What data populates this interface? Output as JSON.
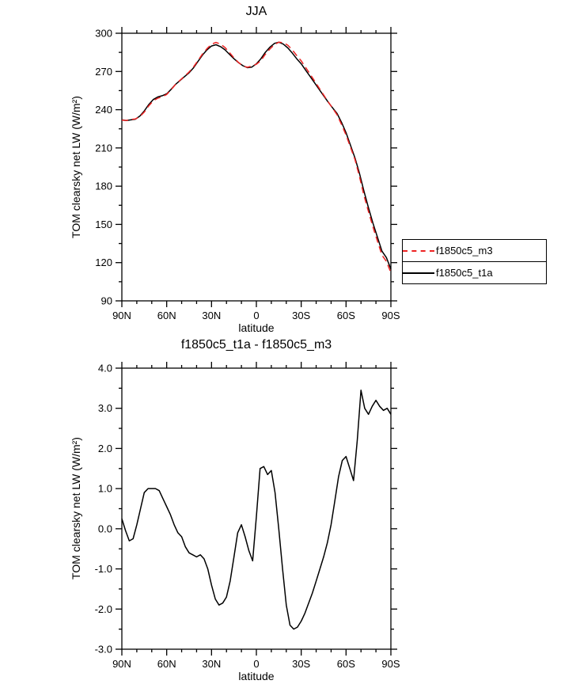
{
  "figure": {
    "background": "#ffffff",
    "axis_color": "#000000"
  },
  "chart_data": [
    {
      "type": "line",
      "title": "JJA",
      "xlabel": "latitude",
      "ylabel": "TOM clearsky net LW (W/m²)",
      "xlim": [
        90,
        -90
      ],
      "ylim": [
        90,
        300
      ],
      "grid": false,
      "legend_position": "right",
      "xticks": [
        {
          "value": 90,
          "label": "90N"
        },
        {
          "value": 60,
          "label": "60N"
        },
        {
          "value": 30,
          "label": "30N"
        },
        {
          "value": 0,
          "label": "0"
        },
        {
          "value": -30,
          "label": "30S"
        },
        {
          "value": -60,
          "label": "60S"
        },
        {
          "value": -90,
          "label": "90S"
        }
      ],
      "xminor_step": 10,
      "yticks": [
        {
          "value": 300,
          "label": "300"
        },
        {
          "value": 270,
          "label": "270"
        },
        {
          "value": 240,
          "label": "240"
        },
        {
          "value": 210,
          "label": "210"
        },
        {
          "value": 180,
          "label": "180"
        },
        {
          "value": 150,
          "label": "150"
        },
        {
          "value": 120,
          "label": "120"
        },
        {
          "value": 90,
          "label": "90"
        }
      ],
      "yminor_step": 15,
      "series": [
        {
          "name": "f1850c5_m3",
          "color": "#ee2222",
          "dash": [
            8,
            5
          ],
          "x": [
            90,
            87,
            84,
            81,
            78,
            75,
            72,
            69,
            66,
            63,
            60,
            57,
            54,
            51,
            48,
            45,
            42,
            39,
            36,
            33,
            30,
            27,
            24,
            21,
            18,
            15,
            12,
            9,
            6,
            3,
            0,
            -3,
            -6,
            -9,
            -12,
            -15,
            -18,
            -21,
            -24,
            -27,
            -30,
            -33,
            -36,
            -39,
            -42,
            -45,
            -48,
            -51,
            -54,
            -57,
            -60,
            -63,
            -66,
            -69,
            -72,
            -75,
            -78,
            -81,
            -84,
            -87,
            -90
          ],
          "y": [
            231.8,
            231.6,
            232.3,
            232.7,
            234.6,
            238.1,
            243,
            247,
            249,
            250.2,
            252,
            255.7,
            259.9,
            263.2,
            266.3,
            269.6,
            273.7,
            278.7,
            283.8,
            288,
            291.4,
            292.8,
            291.4,
            288.8,
            284.9,
            280.7,
            277.1,
            274.4,
            273.3,
            274.3,
            275.7,
            278.5,
            283.5,
            287.6,
            291,
            293,
            292.6,
            290.6,
            287,
            282.5,
            278.3,
            273.1,
            267.8,
            262.4,
            257,
            251.6,
            246.2,
            241.2,
            236,
            228.3,
            220.2,
            210.5,
            200.7,
            187.5,
            172.6,
            160,
            148.1,
            136.9,
            125.9,
            121,
            112.1
          ]
        },
        {
          "name": "f1850c5_t1a",
          "color": "#000000",
          "dash": null,
          "x": [
            90,
            87,
            84,
            81,
            78,
            75,
            72,
            69,
            66,
            63,
            60,
            57,
            54,
            51,
            48,
            45,
            42,
            39,
            36,
            33,
            30,
            27,
            24,
            21,
            18,
            15,
            12,
            9,
            6,
            3,
            0,
            -3,
            -6,
            -9,
            -12,
            -15,
            -18,
            -21,
            -24,
            -27,
            -30,
            -33,
            -36,
            -39,
            -42,
            -45,
            -48,
            -51,
            -54,
            -57,
            -60,
            -63,
            -66,
            -69,
            -72,
            -75,
            -78,
            -81,
            -84,
            -87,
            -90
          ],
          "y": [
            232,
            231.5,
            232,
            232.5,
            235,
            239,
            244,
            248,
            250,
            251,
            252.5,
            256,
            260,
            263,
            266,
            269,
            273,
            278,
            283,
            287,
            290,
            291,
            289.5,
            287,
            283.5,
            280,
            277,
            274.5,
            273,
            273.5,
            276,
            280,
            285,
            289,
            292,
            293,
            291.5,
            288.5,
            284.5,
            280,
            276,
            271,
            266,
            261,
            256,
            251,
            246,
            241.5,
            237,
            230,
            222,
            212,
            202,
            190,
            176,
            163,
            151,
            140,
            129,
            124,
            115
          ]
        }
      ]
    },
    {
      "type": "line",
      "title": "f1850c5_t1a - f1850c5_m3",
      "xlabel": "latitude",
      "ylabel": "TOM clearsky net LW (W/m²)",
      "xlim": [
        90,
        -90
      ],
      "ylim": [
        -3,
        4
      ],
      "grid": false,
      "xticks": [
        {
          "value": 90,
          "label": "90N"
        },
        {
          "value": 60,
          "label": "60N"
        },
        {
          "value": 30,
          "label": "30N"
        },
        {
          "value": 0,
          "label": "0"
        },
        {
          "value": -30,
          "label": "30S"
        },
        {
          "value": -60,
          "label": "60S"
        },
        {
          "value": -90,
          "label": "90S"
        }
      ],
      "xminor_step": 10,
      "yticks": [
        {
          "value": 4,
          "label": "4.0"
        },
        {
          "value": 3,
          "label": "3.0"
        },
        {
          "value": 2,
          "label": "2.0"
        },
        {
          "value": 1,
          "label": "1.0"
        },
        {
          "value": 0,
          "label": "0.0"
        },
        {
          "value": -1,
          "label": "-1.0"
        },
        {
          "value": -2,
          "label": "-2.0"
        },
        {
          "value": -3,
          "label": "-3.0"
        }
      ],
      "yminor_step": 0.5,
      "series": [
        {
          "name": "f1850c5_t1a - f1850c5_m3",
          "color": "#000000",
          "dash": null,
          "x": [
            90,
            87.5,
            85,
            82.5,
            80,
            77.5,
            75,
            72.5,
            70,
            67.5,
            65,
            62.5,
            60,
            57.5,
            55,
            52.5,
            50,
            47.5,
            45,
            42.5,
            40,
            37.5,
            35,
            32.5,
            30,
            27.5,
            25,
            22.5,
            20,
            17.5,
            15,
            12.5,
            10,
            7.5,
            5,
            2.5,
            0,
            -2.5,
            -5,
            -7.5,
            -10,
            -12.5,
            -15,
            -17.5,
            -20,
            -22.5,
            -25,
            -27.5,
            -30,
            -32.5,
            -35,
            -37.5,
            -40,
            -42.5,
            -45,
            -47.5,
            -50,
            -52.5,
            -55,
            -57.5,
            -60,
            -62.5,
            -65,
            -67.5,
            -70,
            -72.5,
            -75,
            -77.5,
            -80,
            -82.5,
            -85,
            -87.5,
            -90
          ],
          "y": [
            0.25,
            -0.05,
            -0.3,
            -0.25,
            0.1,
            0.5,
            0.9,
            1.0,
            1.0,
            1.0,
            0.95,
            0.75,
            0.55,
            0.35,
            0.1,
            -0.1,
            -0.2,
            -0.45,
            -0.6,
            -0.65,
            -0.7,
            -0.65,
            -0.75,
            -1.0,
            -1.4,
            -1.75,
            -1.9,
            -1.85,
            -1.7,
            -1.3,
            -0.7,
            -0.1,
            0.1,
            -0.2,
            -0.55,
            -0.8,
            0.3,
            1.5,
            1.55,
            1.35,
            1.45,
            0.9,
            0.0,
            -1.0,
            -1.9,
            -2.4,
            -2.5,
            -2.45,
            -2.3,
            -2.1,
            -1.85,
            -1.6,
            -1.3,
            -1.0,
            -0.7,
            -0.35,
            0.1,
            0.7,
            1.3,
            1.7,
            1.8,
            1.5,
            1.2,
            2.2,
            3.45,
            3.0,
            2.85,
            3.05,
            3.2,
            3.05,
            2.95,
            3.0,
            2.85
          ]
        }
      ]
    }
  ]
}
